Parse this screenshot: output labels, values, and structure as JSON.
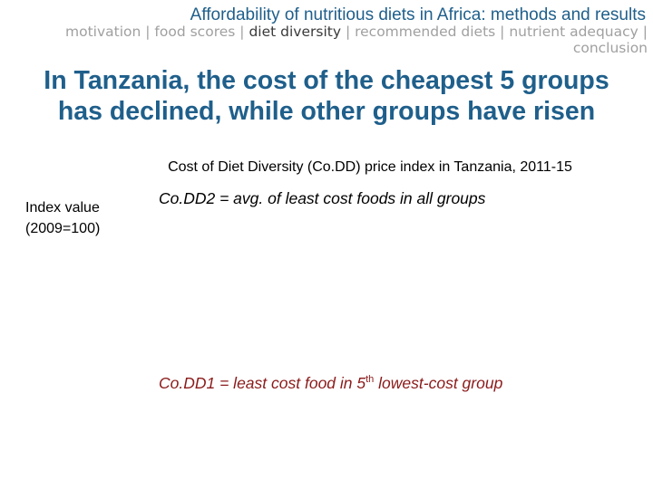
{
  "header": {
    "title": "Affordability of nutritious diets in Africa: methods and results"
  },
  "nav": {
    "items": [
      {
        "label": "motivation"
      },
      {
        "label": "food scores"
      },
      {
        "label": "diet diversity"
      },
      {
        "label": "recommended diets"
      },
      {
        "label": "nutrient adequacy"
      },
      {
        "label": "conclusion"
      }
    ],
    "separator": "|",
    "active_index": 2
  },
  "headline": {
    "line1": "In Tanzania, the cost of the cheapest 5 groups",
    "line2": "has declined, while other groups have risen"
  },
  "chart": {
    "title": "Cost of Diet Diversity (Co.DD) price index in Tanzania, 2011-15",
    "y_label_line1": "Index value",
    "y_label_line2": "(2009=100)",
    "series_labels": {
      "codd2": "Co.DD2 = avg. of least cost foods in all groups",
      "codd1_prefix": "Co.DD1 = least cost food in 5",
      "codd1_sup": "th",
      "codd1_suffix": " lowest-cost group"
    }
  },
  "colors": {
    "accent": "#1f5f8b",
    "nav_inactive": "#a0a0a0",
    "nav_active": "#3a3a3a",
    "codd1": "#8b1a1a"
  }
}
